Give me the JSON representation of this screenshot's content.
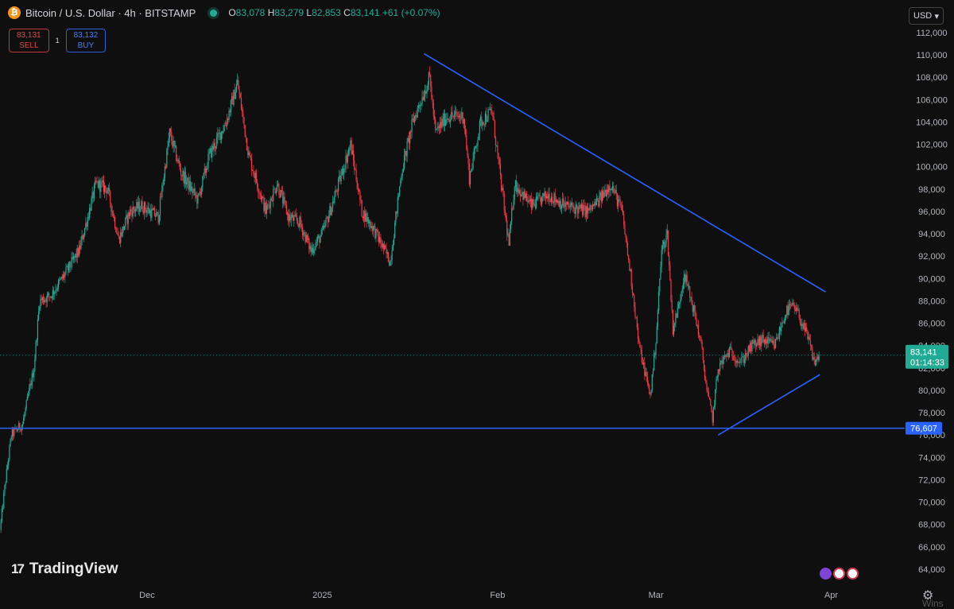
{
  "header": {
    "coin_symbol": "₿",
    "title": "Bitcoin / U.S. Dollar · 4h · BITSTAMP",
    "ohlc": {
      "o_key": "O",
      "o": "83,078",
      "h_key": "H",
      "h": "83,279",
      "l_key": "L",
      "l": "82,853",
      "c_key": "C",
      "c": "83,141",
      "change": "+61 (+0.07%)"
    }
  },
  "trade": {
    "sell_price": "83,131",
    "sell_label": "SELL",
    "spread": "1",
    "buy_price": "83,132",
    "buy_label": "BUY"
  },
  "currency": {
    "label": "USD",
    "chevron": "▾"
  },
  "brand": {
    "mark": "17",
    "name": "TradingView"
  },
  "watermark": "Wins",
  "icons": [
    "bitcoin-icon",
    "live-status-icon",
    "chevron-down-icon",
    "gear-icon",
    "flag-icon"
  ],
  "colors": {
    "background": "#0f0f0f",
    "up": "#22ab94",
    "down": "#f23645",
    "drawing": "#2962ff",
    "sell": "#e04848",
    "buy": "#4d7cf0"
  },
  "chart_data": {
    "type": "candlestick",
    "symbol": "BTCUSD",
    "interval": "4h",
    "exchange": "BITSTAMP",
    "y_ticks": [
      64000,
      66000,
      68000,
      70000,
      72000,
      74000,
      76000,
      78000,
      80000,
      82000,
      84000,
      86000,
      88000,
      90000,
      92000,
      94000,
      96000,
      98000,
      100000,
      102000,
      104000,
      106000,
      108000,
      110000,
      112000
    ],
    "y_tick_labels": [
      "64,000",
      "66,000",
      "68,000",
      "70,000",
      "72,000",
      "74,000",
      "76,000",
      "78,000",
      "80,000",
      "82,000",
      "84,000",
      "86,000",
      "88,000",
      "90,000",
      "92,000",
      "94,000",
      "96,000",
      "98,000",
      "100,000",
      "102,000",
      "104,000",
      "106,000",
      "108,000",
      "110,000",
      "112,000"
    ],
    "ylim": [
      63000,
      113200
    ],
    "x_range": [
      "2024-11-05",
      "2025-04-14"
    ],
    "x_tick_labels": [
      {
        "date": "2024-12-01",
        "label": "Dec"
      },
      {
        "date": "2025-01-01",
        "label": "2025"
      },
      {
        "date": "2025-02-01",
        "label": "Feb"
      },
      {
        "date": "2025-03-01",
        "label": "Mar"
      },
      {
        "date": "2025-04-01",
        "label": "Apr"
      }
    ],
    "price_path": [
      [
        "2024-11-05",
        67500
      ],
      [
        "2024-11-06",
        72000
      ],
      [
        "2024-11-07",
        76000
      ],
      [
        "2024-11-09",
        77000
      ],
      [
        "2024-11-11",
        82000
      ],
      [
        "2024-11-12",
        88000
      ],
      [
        "2024-11-14",
        88500
      ],
      [
        "2024-11-16",
        90000
      ],
      [
        "2024-11-19",
        92500
      ],
      [
        "2024-11-22",
        98500
      ],
      [
        "2024-11-24",
        98000
      ],
      [
        "2024-11-26",
        93500
      ],
      [
        "2024-11-28",
        96000
      ],
      [
        "2024-11-30",
        96500
      ],
      [
        "2024-12-03",
        95500
      ],
      [
        "2024-12-05",
        103000
      ],
      [
        "2024-12-07",
        99500
      ],
      [
        "2024-12-10",
        97000
      ],
      [
        "2024-12-12",
        101000
      ],
      [
        "2024-12-15",
        104000
      ],
      [
        "2024-12-17",
        107500
      ],
      [
        "2024-12-19",
        101000
      ],
      [
        "2024-12-22",
        96000
      ],
      [
        "2024-12-24",
        98500
      ],
      [
        "2024-12-26",
        95500
      ],
      [
        "2024-12-28",
        95000
      ],
      [
        "2024-12-30",
        92500
      ],
      [
        "2025-01-01",
        94000
      ],
      [
        "2025-01-03",
        97000
      ],
      [
        "2025-01-06",
        102000
      ],
      [
        "2025-01-08",
        96000
      ],
      [
        "2025-01-10",
        94500
      ],
      [
        "2025-01-13",
        91500
      ],
      [
        "2025-01-15",
        99500
      ],
      [
        "2025-01-17",
        104000
      ],
      [
        "2025-01-20",
        108000
      ],
      [
        "2025-01-21",
        103000
      ],
      [
        "2025-01-23",
        104500
      ],
      [
        "2025-01-26",
        104500
      ],
      [
        "2025-01-27",
        99000
      ],
      [
        "2025-01-29",
        104000
      ],
      [
        "2025-01-31",
        105000
      ],
      [
        "2025-02-02",
        97000
      ],
      [
        "2025-02-03",
        93000
      ],
      [
        "2025-02-04",
        98500
      ],
      [
        "2025-02-07",
        96500
      ],
      [
        "2025-02-10",
        97500
      ],
      [
        "2025-02-13",
        96500
      ],
      [
        "2025-02-17",
        96000
      ],
      [
        "2025-02-19",
        97000
      ],
      [
        "2025-02-21",
        98500
      ],
      [
        "2025-02-23",
        96000
      ],
      [
        "2025-02-25",
        88500
      ],
      [
        "2025-02-26",
        84000
      ],
      [
        "2025-02-28",
        79500
      ],
      [
        "2025-03-01",
        84500
      ],
      [
        "2025-03-02",
        92500
      ],
      [
        "2025-03-03",
        94000
      ],
      [
        "2025-03-04",
        85500
      ],
      [
        "2025-03-05",
        87500
      ],
      [
        "2025-03-06",
        90500
      ],
      [
        "2025-03-08",
        86500
      ],
      [
        "2025-03-09",
        84000
      ],
      [
        "2025-03-10",
        80000
      ],
      [
        "2025-03-11",
        77500
      ],
      [
        "2025-03-12",
        82000
      ],
      [
        "2025-03-14",
        83500
      ],
      [
        "2025-03-16",
        82500
      ],
      [
        "2025-03-18",
        84000
      ],
      [
        "2025-03-20",
        84500
      ],
      [
        "2025-03-22",
        84000
      ],
      [
        "2025-03-24",
        87000
      ],
      [
        "2025-03-25",
        87500
      ],
      [
        "2025-03-26",
        87000
      ],
      [
        "2025-03-28",
        84500
      ],
      [
        "2025-03-29",
        82500
      ],
      [
        "2025-03-30",
        83141
      ]
    ],
    "annotations": {
      "horizontal_line": {
        "price": 76607,
        "label": "76,607"
      },
      "downtrend_line": {
        "start": [
          "2025-01-19",
          110100
        ],
        "end": [
          "2025-03-31",
          88800
        ]
      },
      "uptrend_line": {
        "start": [
          "2025-03-12",
          76000
        ],
        "end": [
          "2025-03-30",
          81400
        ]
      }
    },
    "last_price": {
      "price": 83141,
      "label": "83,141",
      "countdown": "01:14:33"
    },
    "grid": false,
    "legend": "none"
  }
}
